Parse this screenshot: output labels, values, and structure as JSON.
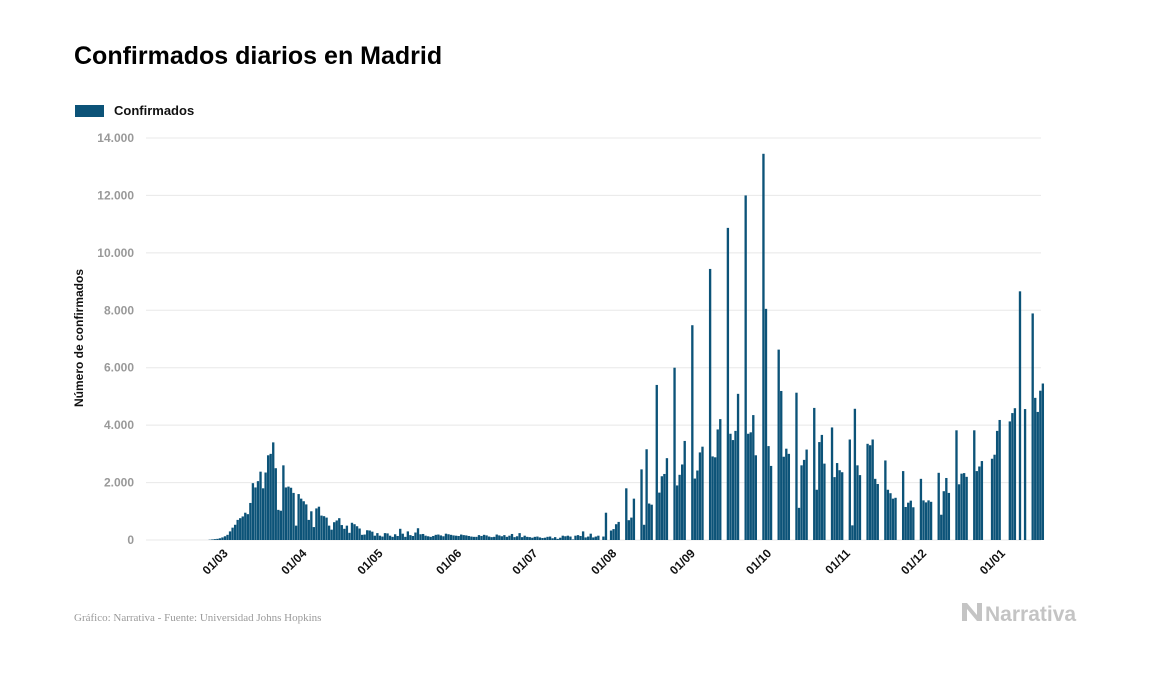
{
  "colors": {
    "bar": "#0c5378",
    "grid": "#e8e8e8",
    "axis_text": "#999999",
    "brand": "#c4c4c4"
  },
  "header": {
    "title": "Confirmados diarios en Madrid"
  },
  "footer": {
    "source": "Gráfico: Narrativa - Fuente: Universidad Johns Hopkins",
    "brand": "Narrativa",
    "brand_icon": "narrativa-logo-icon"
  },
  "chart_data": {
    "type": "bar",
    "title": "Confirmados diarios en Madrid",
    "xlabel": "",
    "ylabel": "Número de confirmados",
    "ylim": [
      0,
      14000
    ],
    "yticks": [
      0,
      2000,
      4000,
      6000,
      8000,
      10000,
      12000,
      14000
    ],
    "ytick_labels": [
      "0",
      "2.000",
      "4.000",
      "6.000",
      "8.000",
      "10.000",
      "12.000",
      "14.000"
    ],
    "xticks": [
      "01/03",
      "01/04",
      "01/05",
      "01/06",
      "01/07",
      "01/08",
      "01/09",
      "01/10",
      "01/11",
      "01/12",
      "01/01"
    ],
    "grid": true,
    "legend_position": "top-left",
    "series": [
      {
        "name": "Confirmados"
      }
    ],
    "date_start": "2020-02-16",
    "values": [
      0,
      0,
      0,
      0,
      0,
      0,
      0,
      0,
      0,
      0,
      0,
      0,
      0,
      0,
      10,
      20,
      30,
      40,
      60,
      90,
      130,
      180,
      300,
      430,
      530,
      700,
      760,
      820,
      950,
      900,
      1290,
      1980,
      1830,
      2050,
      2380,
      1800,
      2350,
      2950,
      3000,
      3400,
      2500,
      1050,
      1020,
      2600,
      1830,
      1860,
      1820,
      1640,
      500,
      1600,
      1440,
      1350,
      1240,
      700,
      1000,
      450,
      1100,
      1160,
      850,
      830,
      780,
      500,
      360,
      620,
      680,
      760,
      520,
      390,
      500,
      250,
      600,
      550,
      480,
      400,
      180,
      190,
      340,
      330,
      290,
      150,
      240,
      150,
      120,
      240,
      230,
      150,
      110,
      200,
      140,
      390,
      220,
      110,
      300,
      170,
      140,
      260,
      410,
      200,
      210,
      150,
      130,
      110,
      140,
      180,
      190,
      160,
      130,
      220,
      200,
      180,
      160,
      150,
      140,
      190,
      170,
      160,
      140,
      120,
      110,
      110,
      170,
      140,
      180,
      160,
      120,
      100,
      110,
      190,
      160,
      130,
      170,
      110,
      150,
      210,
      100,
      130,
      240,
      100,
      150,
      110,
      100,
      80,
      110,
      120,
      90,
      70,
      80,
      110,
      120,
      60,
      100,
      40,
      80,
      150,
      130,
      150,
      120,
      20,
      150,
      170,
      140,
      300,
      90,
      120,
      220,
      90,
      120,
      150,
      0,
      120,
      950,
      0,
      330,
      380,
      550,
      630,
      0,
      0,
      1800,
      690,
      780,
      1440,
      0,
      0,
      2460,
      530,
      3160,
      1270,
      1230,
      0,
      5400,
      1650,
      2220,
      2300,
      2850,
      0,
      0,
      6000,
      1900,
      2270,
      2630,
      3450,
      0,
      0,
      7480,
      2140,
      2420,
      3050,
      3250,
      0,
      0,
      9440,
      2910,
      2880,
      3850,
      4210,
      0,
      0,
      10870,
      3700,
      3480,
      3800,
      5090,
      0,
      0,
      12000,
      3700,
      3750,
      4350,
      2950,
      0,
      0,
      13450,
      8050,
      3270,
      2580,
      0,
      0,
      6630,
      5190,
      2900,
      3180,
      3000,
      0,
      0,
      5130,
      1120,
      2600,
      2790,
      3150,
      0,
      0,
      4600,
      1750,
      3410,
      3660,
      2660,
      0,
      0,
      3920,
      2190,
      2680,
      2430,
      2360,
      0,
      0,
      3500,
      510,
      4570,
      2600,
      2260,
      0,
      0,
      3350,
      3300,
      3500,
      2130,
      1950,
      0,
      0,
      2770,
      1750,
      1630,
      1440,
      1470,
      0,
      0,
      2400,
      1150,
      1300,
      1370,
      1140,
      0,
      0,
      2130,
      1380,
      1310,
      1380,
      1330,
      0,
      0,
      2340,
      880,
      1700,
      2160,
      1640,
      0,
      0,
      3820,
      1940,
      2310,
      2330,
      2200,
      0,
      0,
      3820,
      2400,
      2560,
      2750,
      0,
      0,
      0,
      2830,
      2970,
      3800,
      4180,
      0,
      0,
      0,
      4130,
      4420,
      4590,
      0,
      8660,
      0,
      4560,
      0,
      0,
      7890,
      4950,
      4460,
      5200,
      5450
    ]
  }
}
